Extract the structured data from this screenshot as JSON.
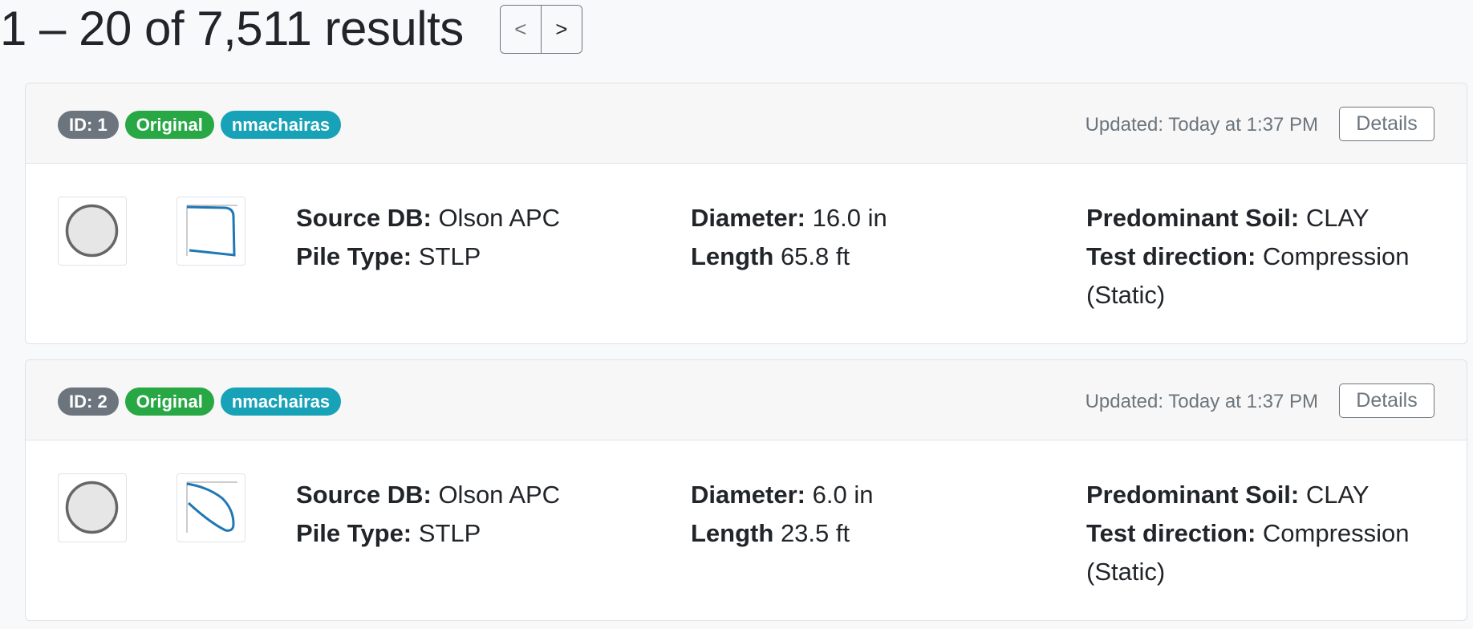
{
  "results": {
    "summary": "1 – 20 of 7,511 results",
    "prev_label": "<",
    "next_label": ">"
  },
  "cards": [
    {
      "id_badge": "ID: 1",
      "status_badge": "Original",
      "user_badge": "nmachairas",
      "updated": "Updated: Today at 1:37 PM",
      "details_label": "Details",
      "source_db_label": "Source DB:",
      "source_db": "Olson APC",
      "pile_type_label": "Pile Type:",
      "pile_type": "STLP",
      "diameter_label": "Diameter:",
      "diameter": "16.0 in",
      "length_label": "Length",
      "length": "65.8 ft",
      "soil_label": "Predominant Soil:",
      "soil": "CLAY",
      "test_direction_label": "Test direction:",
      "test_direction": "Compression (Static)"
    },
    {
      "id_badge": "ID: 2",
      "status_badge": "Original",
      "user_badge": "nmachairas",
      "updated": "Updated: Today at 1:37 PM",
      "details_label": "Details",
      "source_db_label": "Source DB:",
      "source_db": "Olson APC",
      "pile_type_label": "Pile Type:",
      "pile_type": "STLP",
      "diameter_label": "Diameter:",
      "diameter": "6.0 in",
      "length_label": "Length",
      "length": "23.5 ft",
      "soil_label": "Predominant Soil:",
      "soil": "CLAY",
      "test_direction_label": "Test direction:",
      "test_direction": "Compression (Static)"
    }
  ],
  "icons": {
    "pile_section": "circle-cross-section-icon",
    "load_curve": "load-settlement-curve-icon"
  },
  "colors": {
    "badge_id": "#6c757d",
    "badge_original": "#28a745",
    "badge_user": "#17a2b8",
    "curve": "#1f77b4"
  }
}
